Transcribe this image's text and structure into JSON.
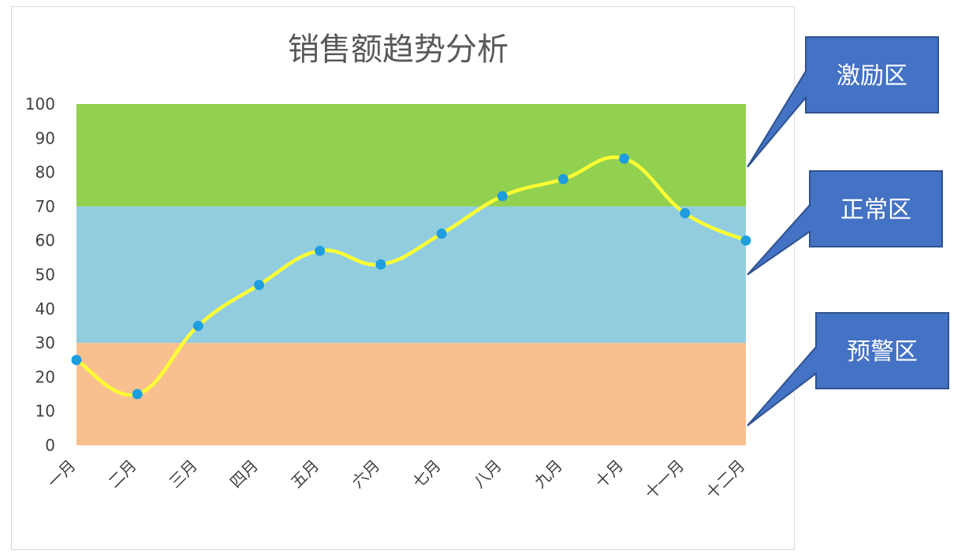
{
  "chart_data": {
    "type": "line",
    "title": "销售额趋势分析",
    "categories": [
      "一月",
      "二月",
      "三月",
      "四月",
      "五月",
      "六月",
      "七月",
      "八月",
      "九月",
      "十月",
      "十一月",
      "十二月"
    ],
    "series": [
      {
        "values": [
          25,
          15,
          35,
          47,
          57,
          53,
          62,
          73,
          78,
          84,
          68,
          60
        ],
        "color": "#ffff33",
        "marker_color": "#1e9ede"
      }
    ],
    "ylim": [
      0,
      100
    ],
    "yticks": [
      0,
      10,
      20,
      30,
      40,
      50,
      60,
      70,
      80,
      90,
      100
    ],
    "grid": false,
    "bands": [
      {
        "name": "预警区",
        "from": 0,
        "to": 30,
        "color": "#f8c08f"
      },
      {
        "name": "正常区",
        "from": 30,
        "to": 70,
        "color": "#92cddf"
      },
      {
        "name": "激励区",
        "from": 70,
        "to": 100,
        "color": "#92d050"
      }
    ],
    "callout_color": "#4472c4"
  }
}
